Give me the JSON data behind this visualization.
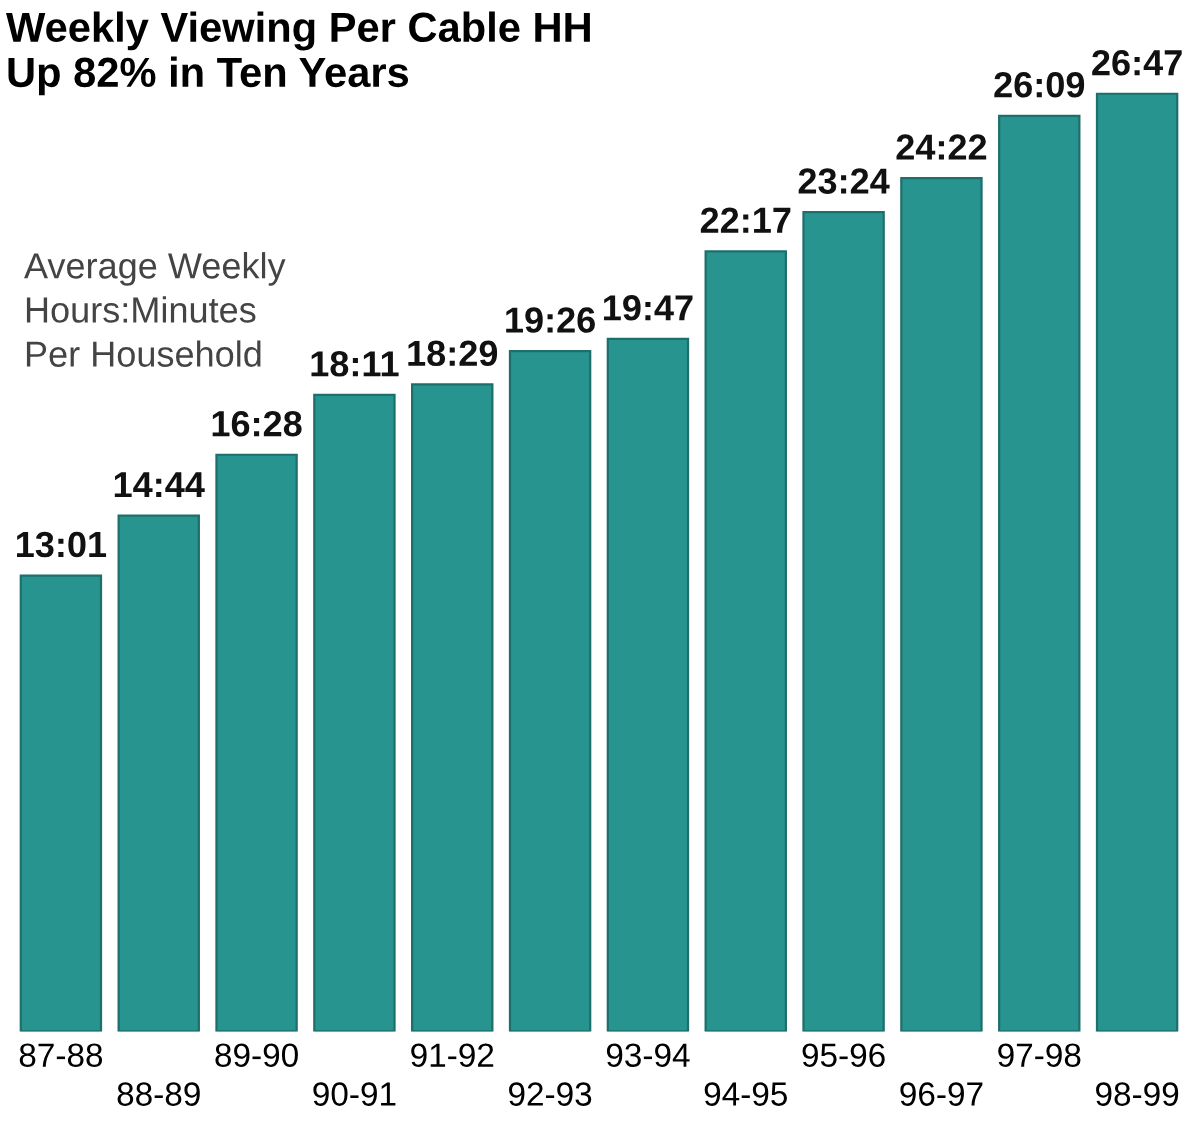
{
  "chart_data": {
    "type": "bar",
    "title": "Weekly Viewing Per Cable HH\nUp 82% in Ten Years",
    "annotations": [
      "Average Weekly\nHours:Minutes\nPer Household"
    ],
    "categories": [
      "87-88",
      "88-89",
      "89-90",
      "90-91",
      "91-92",
      "92-93",
      "93-94",
      "94-95",
      "95-96",
      "96-97",
      "97-98",
      "98-99"
    ],
    "values": [
      13.02,
      14.73,
      16.47,
      18.18,
      18.48,
      19.43,
      19.78,
      22.28,
      23.4,
      24.37,
      26.15,
      26.78
    ],
    "value_labels": [
      "13:01",
      "14:44",
      "16:28",
      "18:11",
      "18:29",
      "19:26",
      "19:47",
      "22:17",
      "23:24",
      "24:22",
      "26:09",
      "26:47"
    ],
    "color": "#27948f",
    "tick_labels": "x",
    "grid": false,
    "legend": false
  }
}
